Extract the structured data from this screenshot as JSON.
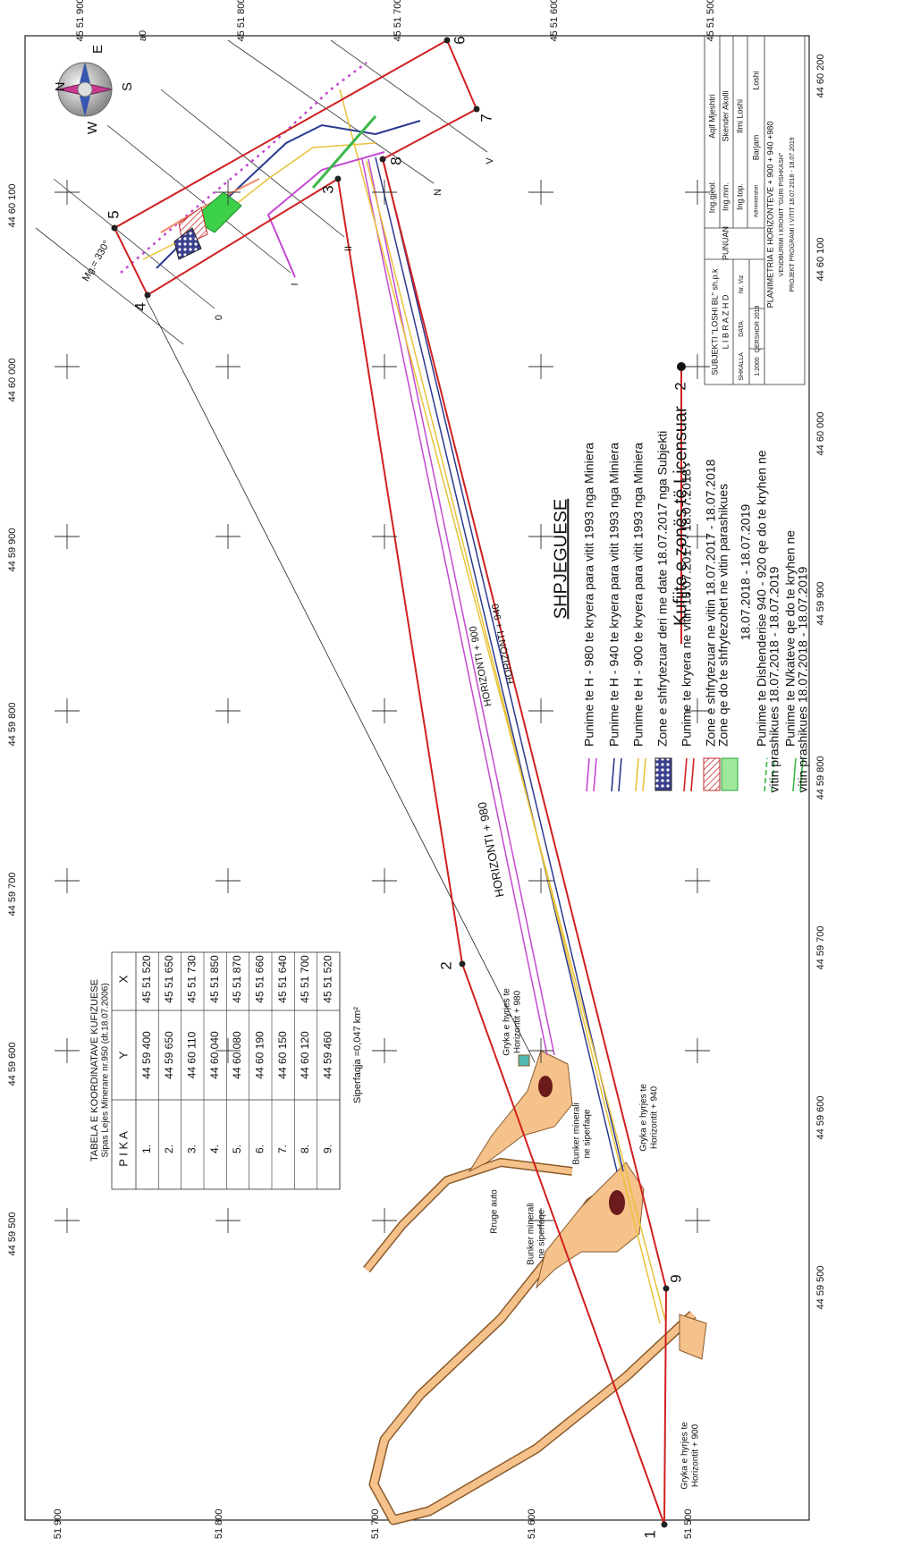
{
  "grid": {
    "easting_labels": [
      "44 59 500",
      "44 59 600",
      "44 59 700",
      "44 59 800",
      "44 59 900",
      "44 60 000",
      "44 60 100",
      "44 60 200"
    ],
    "northing_labels": [
      "45 51 900",
      "45 51 800",
      "45 51 700",
      "45 51 600",
      "45 51 500"
    ]
  },
  "compass": {
    "n": "N",
    "e": "E",
    "s": "S",
    "w": "W"
  },
  "magnetic": "Mg.= 330°",
  "points": [
    "1",
    "2",
    "3",
    "4",
    "5",
    "6",
    "7",
    "8",
    "9"
  ],
  "local_grid": [
    "0",
    "I",
    "II",
    "N",
    "V",
    "a0"
  ],
  "annotations": {
    "horizon_980": "HORIZONTI + 980",
    "horizon_940": "HORIZONTI + 940",
    "horizon_900": "HORIZONTI + 900",
    "portal_980": [
      "Gryka e hyrjes te",
      "Horizontit + 980"
    ],
    "portal_940": [
      "Gryka e hyrjes te",
      "Horizontit + 940"
    ],
    "portal_900": [
      "Gryka e hyrjes te",
      "Horizontit + 900"
    ],
    "bunker_1": [
      "Bunker minerali",
      "ne siperfaqe"
    ],
    "bunker_2": [
      "Bunker minerali",
      "ne siperfaqe"
    ],
    "road": "Rruge auto"
  },
  "table": {
    "title": "TABELA E KOORDINATAVE KUFIZUESE",
    "subtitle": "Sipas Lejes Minerare nr.950 (dt.18.07.2006)",
    "headers": [
      "P I K A",
      "Y",
      "X"
    ],
    "rows": [
      [
        "1.",
        "44 59 400",
        "45 51 520"
      ],
      [
        "2.",
        "44 59 650",
        "45 51 650"
      ],
      [
        "3.",
        "44 60 110",
        "45 51 730"
      ],
      [
        "4.",
        "44 60 040",
        "45 51 850"
      ],
      [
        "5.",
        "44 60 080",
        "45 51 870"
      ],
      [
        "6.",
        "44 60 190",
        "45 51 660"
      ],
      [
        "7.",
        "44 60 150",
        "45 51 640"
      ],
      [
        "8.",
        "44 60 120",
        "45 51 700"
      ],
      [
        "9.",
        "44 59 460",
        "45 51 520"
      ]
    ],
    "area": "Siperfaqja  =0,047 km²"
  },
  "legend": {
    "title": "SHPJEGUESE",
    "items": [
      [
        "Punime te H - 980 te kryera  para vitit 1993 nga Miniera"
      ],
      [
        "Punime te H - 940 te kryera  para vitit 1993 nga Miniera"
      ],
      [
        "Punime te H - 900 te kryera  para vitit 1993 nga Miniera"
      ],
      [
        "Zone e shfrytezuar deri me date 18.07.2017 nga Subjekti"
      ],
      [
        "Punime te kryera  ne vitin 18.07.2017 - 18.07.2018"
      ],
      [
        "Zone e shfrytezuar ne vitin 18.07.2017 - 18.07.2018"
      ],
      [
        "Zone qe do te shfrytezohet  ne vitin parashikues",
        "18.07.2018 - 18.07.2019"
      ],
      [
        "Punime te Dishenderise 940 - 920 qe do te kryhen  ne",
        "vitin prashikues 18.07.2018 - 18.07.2019"
      ],
      [
        "Punime te N/kateve qe do te kryhen  ne",
        "vitin prashikues 18.07.2018 - 18.07.2019"
      ]
    ]
  },
  "license_legend": {
    "label": "Kufijte e zonës të Liçensuar",
    "point": "2"
  },
  "title_block": {
    "company": "SUBJEKTI \"LOSHI BL\" sh.p.k",
    "city": "L I B R A Z H D",
    "worked_by": "PUNUAN",
    "staff": [
      [
        "Ing.gjeol.",
        "Aqif Mjeshtri"
      ],
      [
        "Ing.min.",
        "Skender Akolli"
      ],
      [
        "Ing.top.",
        "Ilmi Loshi"
      ],
      [
        "Administratori",
        "Barjam",
        "Loshi"
      ]
    ],
    "headers": [
      "SHKALLA",
      "DATA",
      "Nr. Viz"
    ],
    "scale": "1:2000",
    "date": "QERSHOR 2018",
    "drawing_title": [
      "PLANIMETRIA E HORIZONTEVE + 900 + 940 +980",
      "VENDBURIMI I KROMIT \"GURI PISHKASH\"",
      "PROJEKT PROGRAMI I VITIT 18.07.2018 - 18.07.2019"
    ]
  }
}
